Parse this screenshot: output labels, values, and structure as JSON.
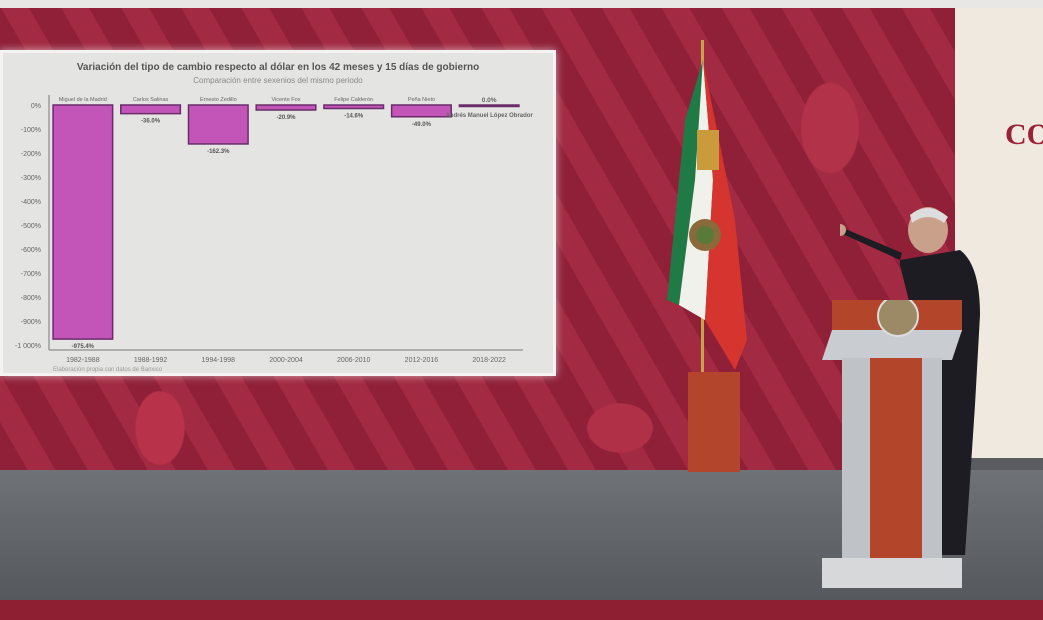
{
  "background": {
    "wall_text": "CO"
  },
  "chart_data": {
    "type": "bar",
    "title": "Variación del tipo de cambio respecto al dólar en los 42 meses y 15 días de gobierno",
    "subtitle": "Comparación entre sexenios del mismo periodo",
    "categories": [
      "1982-1988",
      "1988-1992",
      "1994-1998",
      "2000-2004",
      "2006-2010",
      "2012-2016",
      "2018-2022"
    ],
    "presidents": [
      "Miguel de la Madrid",
      "Carlos Salinas",
      "Ernesto Zedillo",
      "Vicente Fox",
      "Felipe Calderón",
      "Peña Nieto",
      "Andrés Manuel López Obrador"
    ],
    "values": [
      -975.4,
      -36.0,
      -162.3,
      -20.9,
      -14.6,
      -49.0,
      0.0
    ],
    "data_labels": [
      "-975.4%",
      "-36.0%",
      "-162.3%",
      "-20.9%",
      "-14.6%",
      "-49.0%",
      "0.0%"
    ],
    "yticks": [
      "0%",
      "-100%",
      "-200%",
      "-300%",
      "-400%",
      "-500%",
      "-600%",
      "-700%",
      "-800%",
      "-900%",
      "-1 000%"
    ],
    "ylim": [
      -1000,
      0
    ],
    "grid": false,
    "colors": {
      "bar": "#c455b8",
      "bar_edge": "#6a2d6a"
    }
  },
  "footer": "Elaboración propia con datos de Banxico"
}
